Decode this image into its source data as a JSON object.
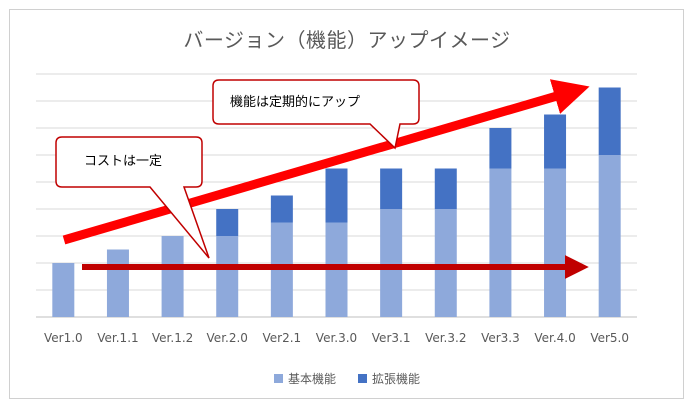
{
  "chart_data": {
    "type": "bar",
    "stacked": true,
    "title": "バージョン（機能）アップイメージ",
    "categories": [
      "Ver1.0",
      "Ver.1.1",
      "Ver.1.2",
      "Ver.2.0",
      "Ver2.1",
      "Ver.3.0",
      "Ver3.1",
      "Ver.3.2",
      "Ver3.3",
      "Ver.4.0",
      "Ver5.0"
    ],
    "series": [
      {
        "name": "基本機能",
        "color": "#8EA9DB",
        "values": [
          2,
          2.5,
          3,
          3,
          3.5,
          3.5,
          4,
          4,
          5.5,
          5.5,
          6
        ]
      },
      {
        "name": "拡張機能",
        "color": "#4472C4",
        "values": [
          0,
          0,
          0,
          1,
          1,
          2,
          1.5,
          1.5,
          1.5,
          2,
          2.5
        ]
      }
    ],
    "ylim": [
      0,
      9
    ],
    "grid": true,
    "legend": "bottom",
    "annotations": [
      {
        "text": "機能は定期的にアップ"
      },
      {
        "text": "コストは一定"
      }
    ]
  }
}
